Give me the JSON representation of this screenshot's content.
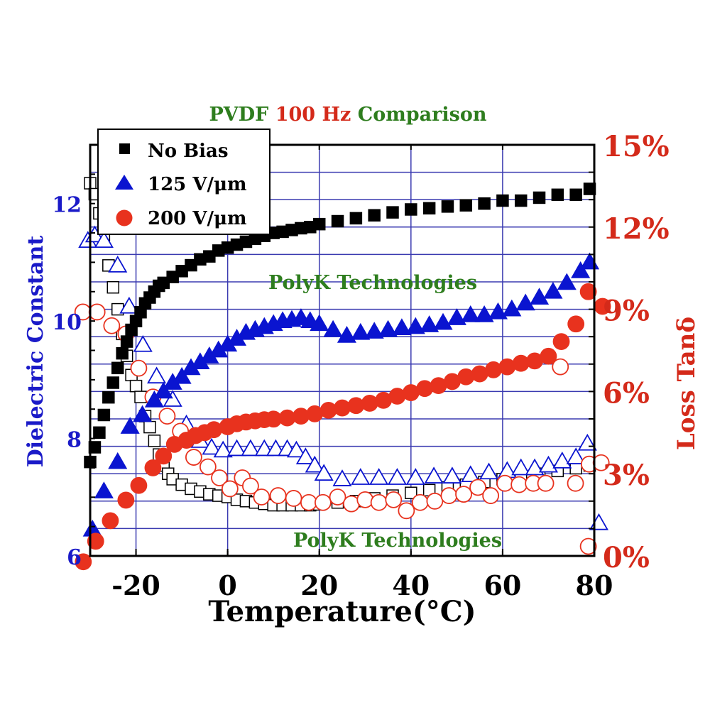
{
  "chart_data": {
    "type": "scatter",
    "title_parts": [
      {
        "text": "PVDF ",
        "color": "#2e7d1e"
      },
      {
        "text": "100 Hz",
        "color": "#d42a1a"
      },
      {
        "text": " Comparison",
        "color": "#2e7d1e"
      }
    ],
    "xlabel": "Temperature(°C)",
    "ylabel_left": "Dielectric Constant",
    "ylabel_right": "Loss Tanδ",
    "xlim": [
      -30,
      80
    ],
    "ylim_left": [
      6,
      13
    ],
    "ylim_right": [
      0,
      15
    ],
    "x_ticks": [
      -20,
      0,
      20,
      40,
      60,
      80
    ],
    "left_ticks": [
      6,
      8,
      10,
      12
    ],
    "right_ticks": [
      "0%",
      "3%",
      "6%",
      "9%",
      "12%",
      "15%"
    ],
    "right_tick_values": [
      0,
      3,
      6,
      9,
      12,
      15
    ],
    "grid": true,
    "legend_placement": "top-left",
    "watermarks": [
      "PolyK Technologies",
      "PolyK Technologies"
    ],
    "colors": {
      "left_axis": "#1a1ac8",
      "right_axis": "#d42a1a",
      "grid": "#3a3ab0",
      "watermark": "#2e7d1e"
    },
    "legend": [
      {
        "label": "No Bias",
        "marker": "square",
        "color": "#000000"
      },
      {
        "label": "125 V/μm",
        "marker": "triangle",
        "color": "#0a14d0"
      },
      {
        "label": "200 V/μm",
        "marker": "circle",
        "color": "#e8321e"
      }
    ],
    "series": [
      {
        "name": "No Bias",
        "axis": "left",
        "marker": "square",
        "filled": true,
        "color": "#000000",
        "x": [
          -30,
          -29,
          -28,
          -27,
          -26,
          -25,
          -24,
          -23,
          -22,
          -21,
          -20,
          -19,
          -18,
          -17,
          -16,
          -15,
          -14,
          -12,
          -10,
          -8,
          -6,
          -4,
          -2,
          0,
          2,
          4,
          6,
          8,
          10,
          12,
          14,
          16,
          18,
          20,
          24,
          28,
          32,
          36,
          40,
          44,
          48,
          52,
          56,
          60,
          64,
          68,
          72,
          76,
          79
        ],
        "y": [
          7.6,
          7.85,
          8.1,
          8.4,
          8.7,
          8.95,
          9.2,
          9.45,
          9.65,
          9.85,
          10.0,
          10.15,
          10.3,
          10.4,
          10.5,
          10.6,
          10.65,
          10.75,
          10.85,
          10.95,
          11.05,
          11.1,
          11.2,
          11.25,
          11.3,
          11.35,
          11.4,
          11.45,
          11.5,
          11.52,
          11.55,
          11.58,
          11.6,
          11.65,
          11.7,
          11.75,
          11.8,
          11.85,
          11.9,
          11.92,
          11.95,
          11.97,
          12.0,
          12.05,
          12.05,
          12.1,
          12.15,
          12.15,
          12.25
        ]
      },
      {
        "name": "No Bias",
        "axis": "right",
        "marker": "square",
        "filled": false,
        "color": "#000000",
        "x": [
          -30,
          -29,
          -28,
          -27,
          -26,
          -25,
          -24,
          -23,
          -22,
          -21,
          -20,
          -19,
          -18,
          -17,
          -16,
          -15,
          -14,
          -13,
          -12,
          -10,
          -8,
          -6,
          -4,
          -2,
          0,
          2,
          4,
          6,
          8,
          10,
          12,
          14,
          16,
          18,
          20,
          24,
          28,
          32,
          36,
          40,
          44,
          48,
          52,
          56,
          60,
          64,
          68,
          72,
          76,
          79
        ],
        "y": [
          13.6,
          13.2,
          12.5,
          11.7,
          10.6,
          9.8,
          9.0,
          8.1,
          7.3,
          6.6,
          6.2,
          5.8,
          5.1,
          4.7,
          4.2,
          3.7,
          3.3,
          3.0,
          2.8,
          2.6,
          2.45,
          2.35,
          2.25,
          2.2,
          2.15,
          2.05,
          2.0,
          1.95,
          1.9,
          1.85,
          1.85,
          1.85,
          1.85,
          1.85,
          1.88,
          1.95,
          2.0,
          2.1,
          2.2,
          2.3,
          2.4,
          2.5,
          2.6,
          2.7,
          2.8,
          2.9,
          3.0,
          3.1,
          3.2,
          3.3
        ]
      },
      {
        "name": "125 V/μm",
        "axis": "left",
        "marker": "triangle",
        "filled": true,
        "color": "#0a14d0",
        "x": [
          -29.5,
          -27,
          -24,
          -21.3,
          -18.6,
          -16,
          -14,
          -12,
          -10,
          -8,
          -6,
          -4,
          -2,
          0,
          2,
          4,
          6,
          8,
          10,
          12,
          14,
          16,
          18,
          20,
          23,
          26,
          29,
          32,
          35,
          38,
          41,
          44,
          47,
          50,
          53,
          56,
          59,
          62,
          65,
          68,
          71,
          74,
          77,
          79
        ],
        "y": [
          6.45,
          7.1,
          7.6,
          8.2,
          8.4,
          8.65,
          8.8,
          8.95,
          9.05,
          9.2,
          9.3,
          9.4,
          9.5,
          9.6,
          9.7,
          9.8,
          9.85,
          9.9,
          9.95,
          10.0,
          10.02,
          10.05,
          10.0,
          9.95,
          9.85,
          9.75,
          9.8,
          9.82,
          9.85,
          9.88,
          9.9,
          9.93,
          9.97,
          10.05,
          10.1,
          10.1,
          10.15,
          10.2,
          10.3,
          10.4,
          10.5,
          10.65,
          10.85,
          11.0
        ]
      },
      {
        "name": "125 V/μm",
        "axis": "right",
        "marker": "triangle",
        "filled": false,
        "color": "#0a14d0",
        "x": [
          -30.5,
          -29,
          -27,
          -24,
          -21.5,
          -18.5,
          -15.5,
          -12,
          -9,
          -6,
          -3.5,
          -1,
          2,
          5,
          8,
          10.5,
          13,
          15,
          17,
          19,
          21,
          25,
          29,
          33,
          37,
          41,
          45,
          49,
          53,
          57,
          61,
          64,
          67,
          70,
          73,
          76,
          78.5,
          81
        ],
        "y": [
          11.5,
          11.7,
          11.5,
          10.6,
          9.1,
          7.7,
          6.55,
          5.7,
          4.8,
          4.2,
          3.95,
          3.85,
          3.9,
          3.9,
          3.9,
          3.9,
          3.9,
          3.85,
          3.6,
          3.3,
          3.0,
          2.8,
          2.85,
          2.85,
          2.85,
          2.85,
          2.9,
          2.9,
          2.95,
          3.05,
          3.1,
          3.2,
          3.2,
          3.3,
          3.45,
          3.6,
          4.1,
          1.2
        ]
      },
      {
        "name": "200 V/μm",
        "axis": "left",
        "marker": "circle",
        "filled": true,
        "color": "#e8321e",
        "x": [
          -31.5,
          -28.8,
          -25.6,
          -22.2,
          -19.4,
          -16.3,
          -14,
          -11.6,
          -9,
          -7,
          -5,
          -3,
          0,
          2,
          4,
          6,
          8,
          10,
          13,
          16,
          19,
          22,
          25,
          28,
          31,
          34,
          37,
          40,
          43,
          46,
          49,
          52,
          55,
          58,
          61,
          64,
          67,
          70,
          72.8,
          76,
          78.7,
          81.8
        ],
        "y": [
          5.9,
          6.25,
          6.6,
          6.95,
          7.2,
          7.5,
          7.7,
          7.9,
          7.97,
          8.05,
          8.1,
          8.15,
          8.2,
          8.25,
          8.28,
          8.3,
          8.32,
          8.33,
          8.35,
          8.38,
          8.42,
          8.48,
          8.52,
          8.56,
          8.6,
          8.65,
          8.72,
          8.78,
          8.85,
          8.9,
          8.97,
          9.05,
          9.1,
          9.17,
          9.22,
          9.28,
          9.32,
          9.4,
          9.65,
          9.95,
          10.5,
          10.25
        ]
      },
      {
        "name": "200 V/μm",
        "axis": "right",
        "marker": "circle",
        "filled": false,
        "color": "#e8321e",
        "x": [
          -31.6,
          -28.5,
          -25.3,
          -22.2,
          -19.4,
          -16.3,
          -13.2,
          -10.3,
          -7.4,
          -4.3,
          -1.8,
          0.5,
          3.2,
          5,
          7.4,
          11,
          14.4,
          17.7,
          20.8,
          24,
          27,
          30,
          33,
          36.2,
          39,
          42,
          45.2,
          48.3,
          51.5,
          54.6,
          57.4,
          60.5,
          63.6,
          66.7,
          69.4,
          72.6,
          75.9,
          78.9,
          78.7,
          81.5
        ],
        "y": [
          8.9,
          8.9,
          8.4,
          8.1,
          6.85,
          5.8,
          5.1,
          4.55,
          3.6,
          3.25,
          2.85,
          2.45,
          2.85,
          2.55,
          2.15,
          2.2,
          2.1,
          1.95,
          1.95,
          2.15,
          1.9,
          2.05,
          1.95,
          2.05,
          1.65,
          1.95,
          2.0,
          2.2,
          2.25,
          2.5,
          2.2,
          2.65,
          2.6,
          2.65,
          2.65,
          6.9,
          2.65,
          3.35,
          0.35,
          3.4
        ]
      }
    ]
  }
}
